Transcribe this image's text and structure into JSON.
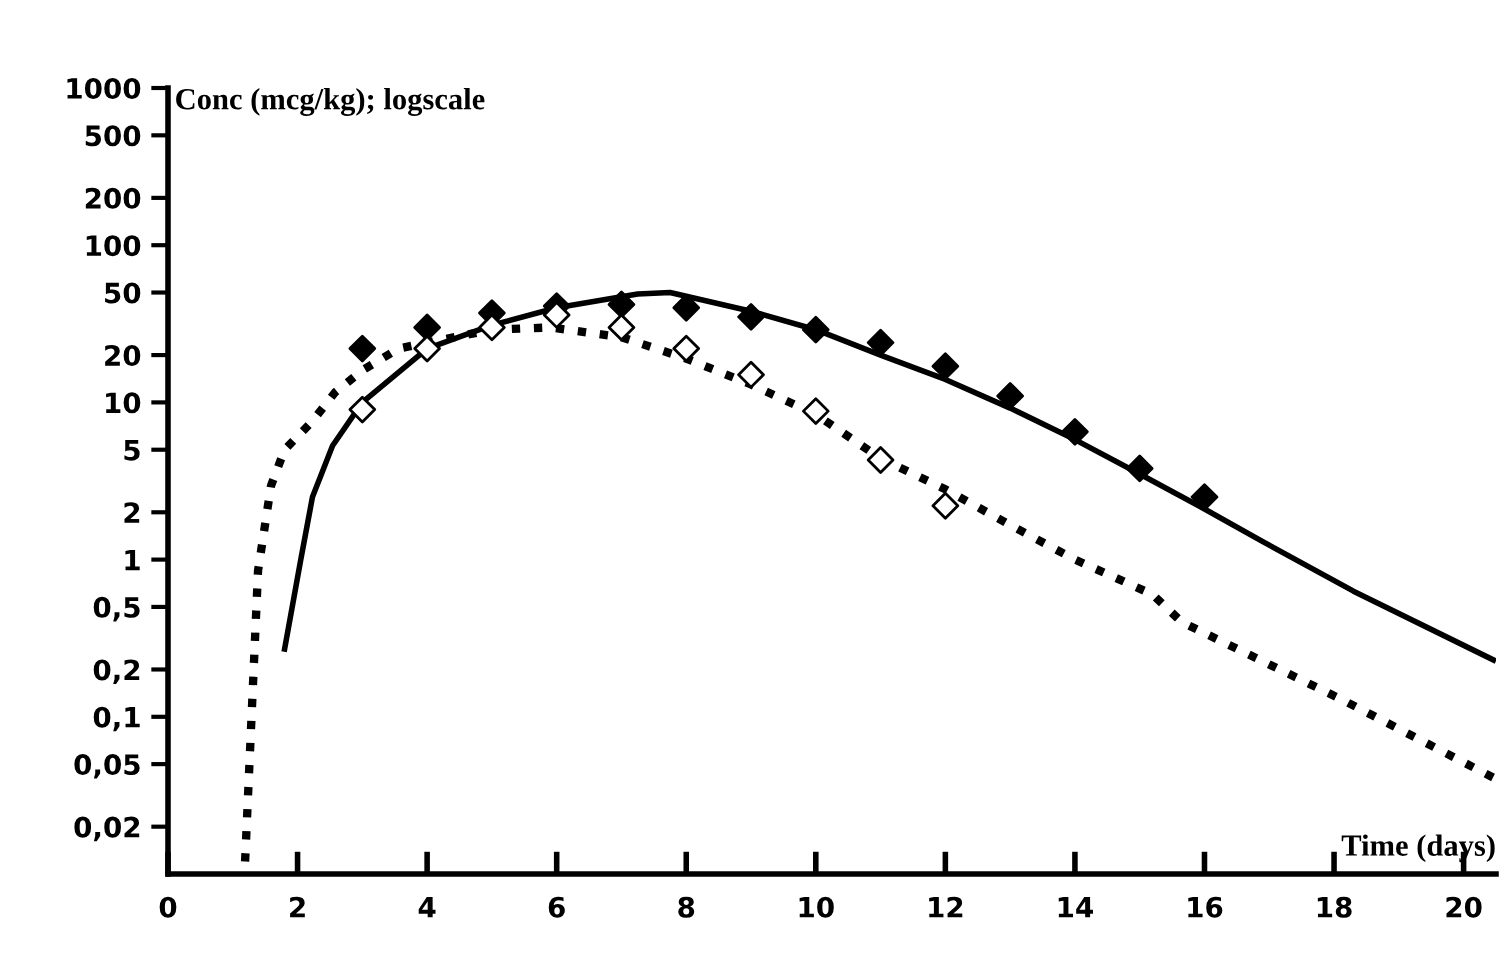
{
  "chart_data": {
    "type": "line",
    "xlabel": "Time (days)",
    "ylabel": "Conc (mcg/kg); logscale",
    "log": "y",
    "grid": false,
    "xlim": [
      0,
      20.5
    ],
    "xticks": [
      0,
      2,
      4,
      6,
      8,
      10,
      12,
      14,
      16,
      18,
      20
    ],
    "ylim": [
      0.01,
      1000
    ],
    "yticks": [
      {
        "value": 0.02,
        "label": "0,02"
      },
      {
        "value": 0.05,
        "label": "0,05"
      },
      {
        "value": 0.1,
        "label": "0,1"
      },
      {
        "value": 0.2,
        "label": "0,2"
      },
      {
        "value": 0.5,
        "label": "0,5"
      },
      1,
      2,
      5,
      10,
      20,
      50,
      100,
      200,
      500,
      1000
    ],
    "series": [
      {
        "line_style": "solid",
        "color": "#000000",
        "x": [
          1.8,
          2.05,
          2.23,
          2.54,
          3,
          4,
          5,
          6,
          7.25,
          7.75,
          9,
          10,
          11,
          12,
          13,
          14,
          15,
          16,
          16.9,
          18.3,
          20.46
        ],
        "values": [
          0.27,
          1,
          2.5,
          5.3,
          10,
          22,
          31,
          40,
          49,
          50,
          38,
          29,
          20,
          14,
          9.2,
          5.8,
          3.5,
          2.1,
          1.3,
          0.63,
          0.23
        ]
      },
      {
        "line_style": "dotted",
        "color": "#000000",
        "x": [
          1.19,
          1.39,
          1.59,
          1.8,
          2.23,
          2.58,
          3,
          3.56,
          4,
          5,
          5.9,
          7,
          8,
          9,
          10,
          11,
          12,
          13,
          14,
          15.2,
          15.65,
          18.1,
          20.46
        ],
        "values": [
          0.012,
          0.85,
          2.95,
          5,
          7.6,
          11.6,
          16,
          22,
          24,
          29,
          30,
          26,
          19,
          13,
          8.4,
          4.4,
          2.8,
          1.66,
          1,
          0.6,
          0.4,
          0.13,
          0.041
        ]
      },
      {
        "type": "scatter",
        "marker": "diamond",
        "color": "#000000",
        "x": [
          3,
          4,
          5,
          6,
          7,
          8,
          9,
          10,
          11,
          12,
          13,
          14,
          15,
          16
        ],
        "values": [
          22,
          30,
          37,
          41,
          42,
          40,
          35,
          29,
          24,
          17,
          11,
          6.5,
          3.8,
          2.5
        ]
      },
      {
        "type": "scatter",
        "marker": "diamond",
        "color": "#ffffff",
        "x": [
          3,
          4,
          5,
          6,
          7,
          8,
          9,
          10,
          11,
          12
        ],
        "values": [
          9,
          22,
          30,
          36,
          30,
          22,
          15,
          8.8,
          4.3,
          2.2
        ]
      }
    ]
  }
}
